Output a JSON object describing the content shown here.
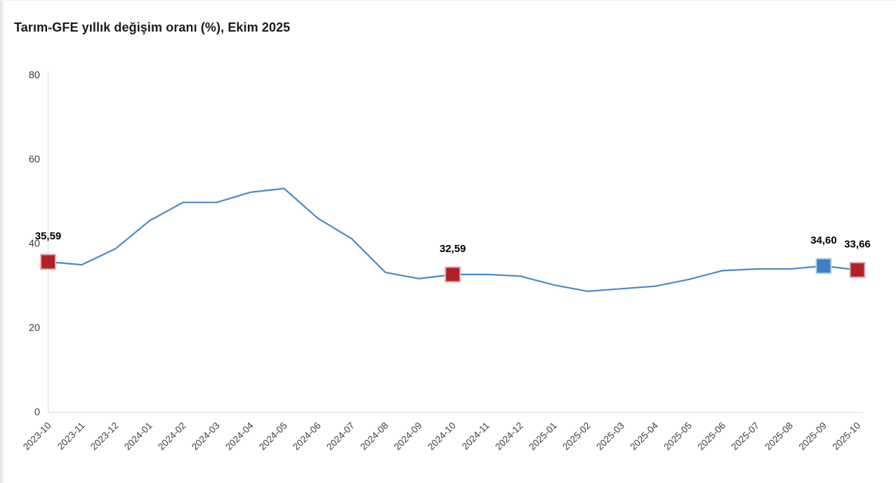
{
  "page": {
    "title": "Tarım-GFE yıllık değişim oranı (%), Ekim 2025"
  },
  "chart_data": {
    "type": "line",
    "title": "Tarım-GFE yıllık değişim oranı (%), Ekim 2025",
    "x": [
      "2023-10",
      "2023-11",
      "2023-12",
      "2024-01",
      "2024-02",
      "2024-03",
      "2024-04",
      "2024-05",
      "2024-06",
      "2024-07",
      "2024-08",
      "2024-09",
      "2024-10",
      "2024-11",
      "2024-12",
      "2025-01",
      "2025-02",
      "2025-03",
      "2025-04",
      "2025-05",
      "2025-06",
      "2025-07",
      "2025-08",
      "2025-09",
      "2025-10"
    ],
    "values": [
      35.59,
      34.9,
      38.7,
      45.3,
      49.7,
      49.7,
      52.1,
      53.0,
      45.9,
      41.1,
      33.1,
      31.6,
      32.59,
      32.6,
      32.2,
      30.1,
      28.6,
      29.2,
      29.8,
      31.4,
      33.5,
      33.9,
      33.9,
      34.6,
      33.66
    ],
    "ylim": [
      0,
      80
    ],
    "yticks": [
      0,
      20,
      40,
      60,
      80
    ],
    "ytick_labels": [
      "0",
      "20",
      "40",
      "60",
      "80"
    ],
    "grid": false,
    "legend": "none",
    "line_color": "#4a8bc7",
    "axis_color": "#d9d9d9",
    "tick_label_color": "#3f3f3f",
    "highlights": [
      {
        "x": "2023-10",
        "index": 0,
        "label": "35,59",
        "value": 35.59,
        "color": "#b02127",
        "border": "#e2b3b3"
      },
      {
        "x": "2024-10",
        "index": 12,
        "label": "32,59",
        "value": 32.59,
        "color": "#b02127",
        "border": "#e2b3b3"
      },
      {
        "x": "2025-09",
        "index": 23,
        "label": "34,60",
        "value": 34.6,
        "color": "#3e80c1",
        "border": "#b5d0ea"
      },
      {
        "x": "2025-10",
        "index": 24,
        "label": "33,66",
        "value": 33.66,
        "color": "#b02127",
        "border": "#e2b3b3"
      }
    ]
  }
}
